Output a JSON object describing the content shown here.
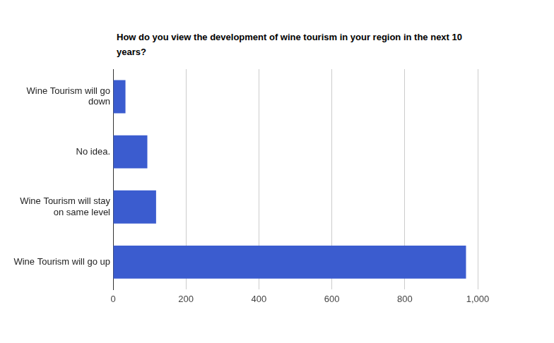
{
  "chart_data": {
    "type": "bar",
    "orientation": "horizontal",
    "title": "How do you view the development of wine tourism in your region in the next 10 years?",
    "categories": [
      "Wine Tourism will go down",
      "No idea.",
      "Wine Tourism will stay on same level",
      "Wine Tourism will go up"
    ],
    "values": [
      34,
      94,
      118,
      968
    ],
    "color": "#3b5ccf",
    "xlim": [
      0,
      1000
    ],
    "xticks": [
      0,
      200,
      400,
      600,
      800,
      {
        "value": 1000,
        "label": "1,000"
      }
    ],
    "grid": true
  }
}
